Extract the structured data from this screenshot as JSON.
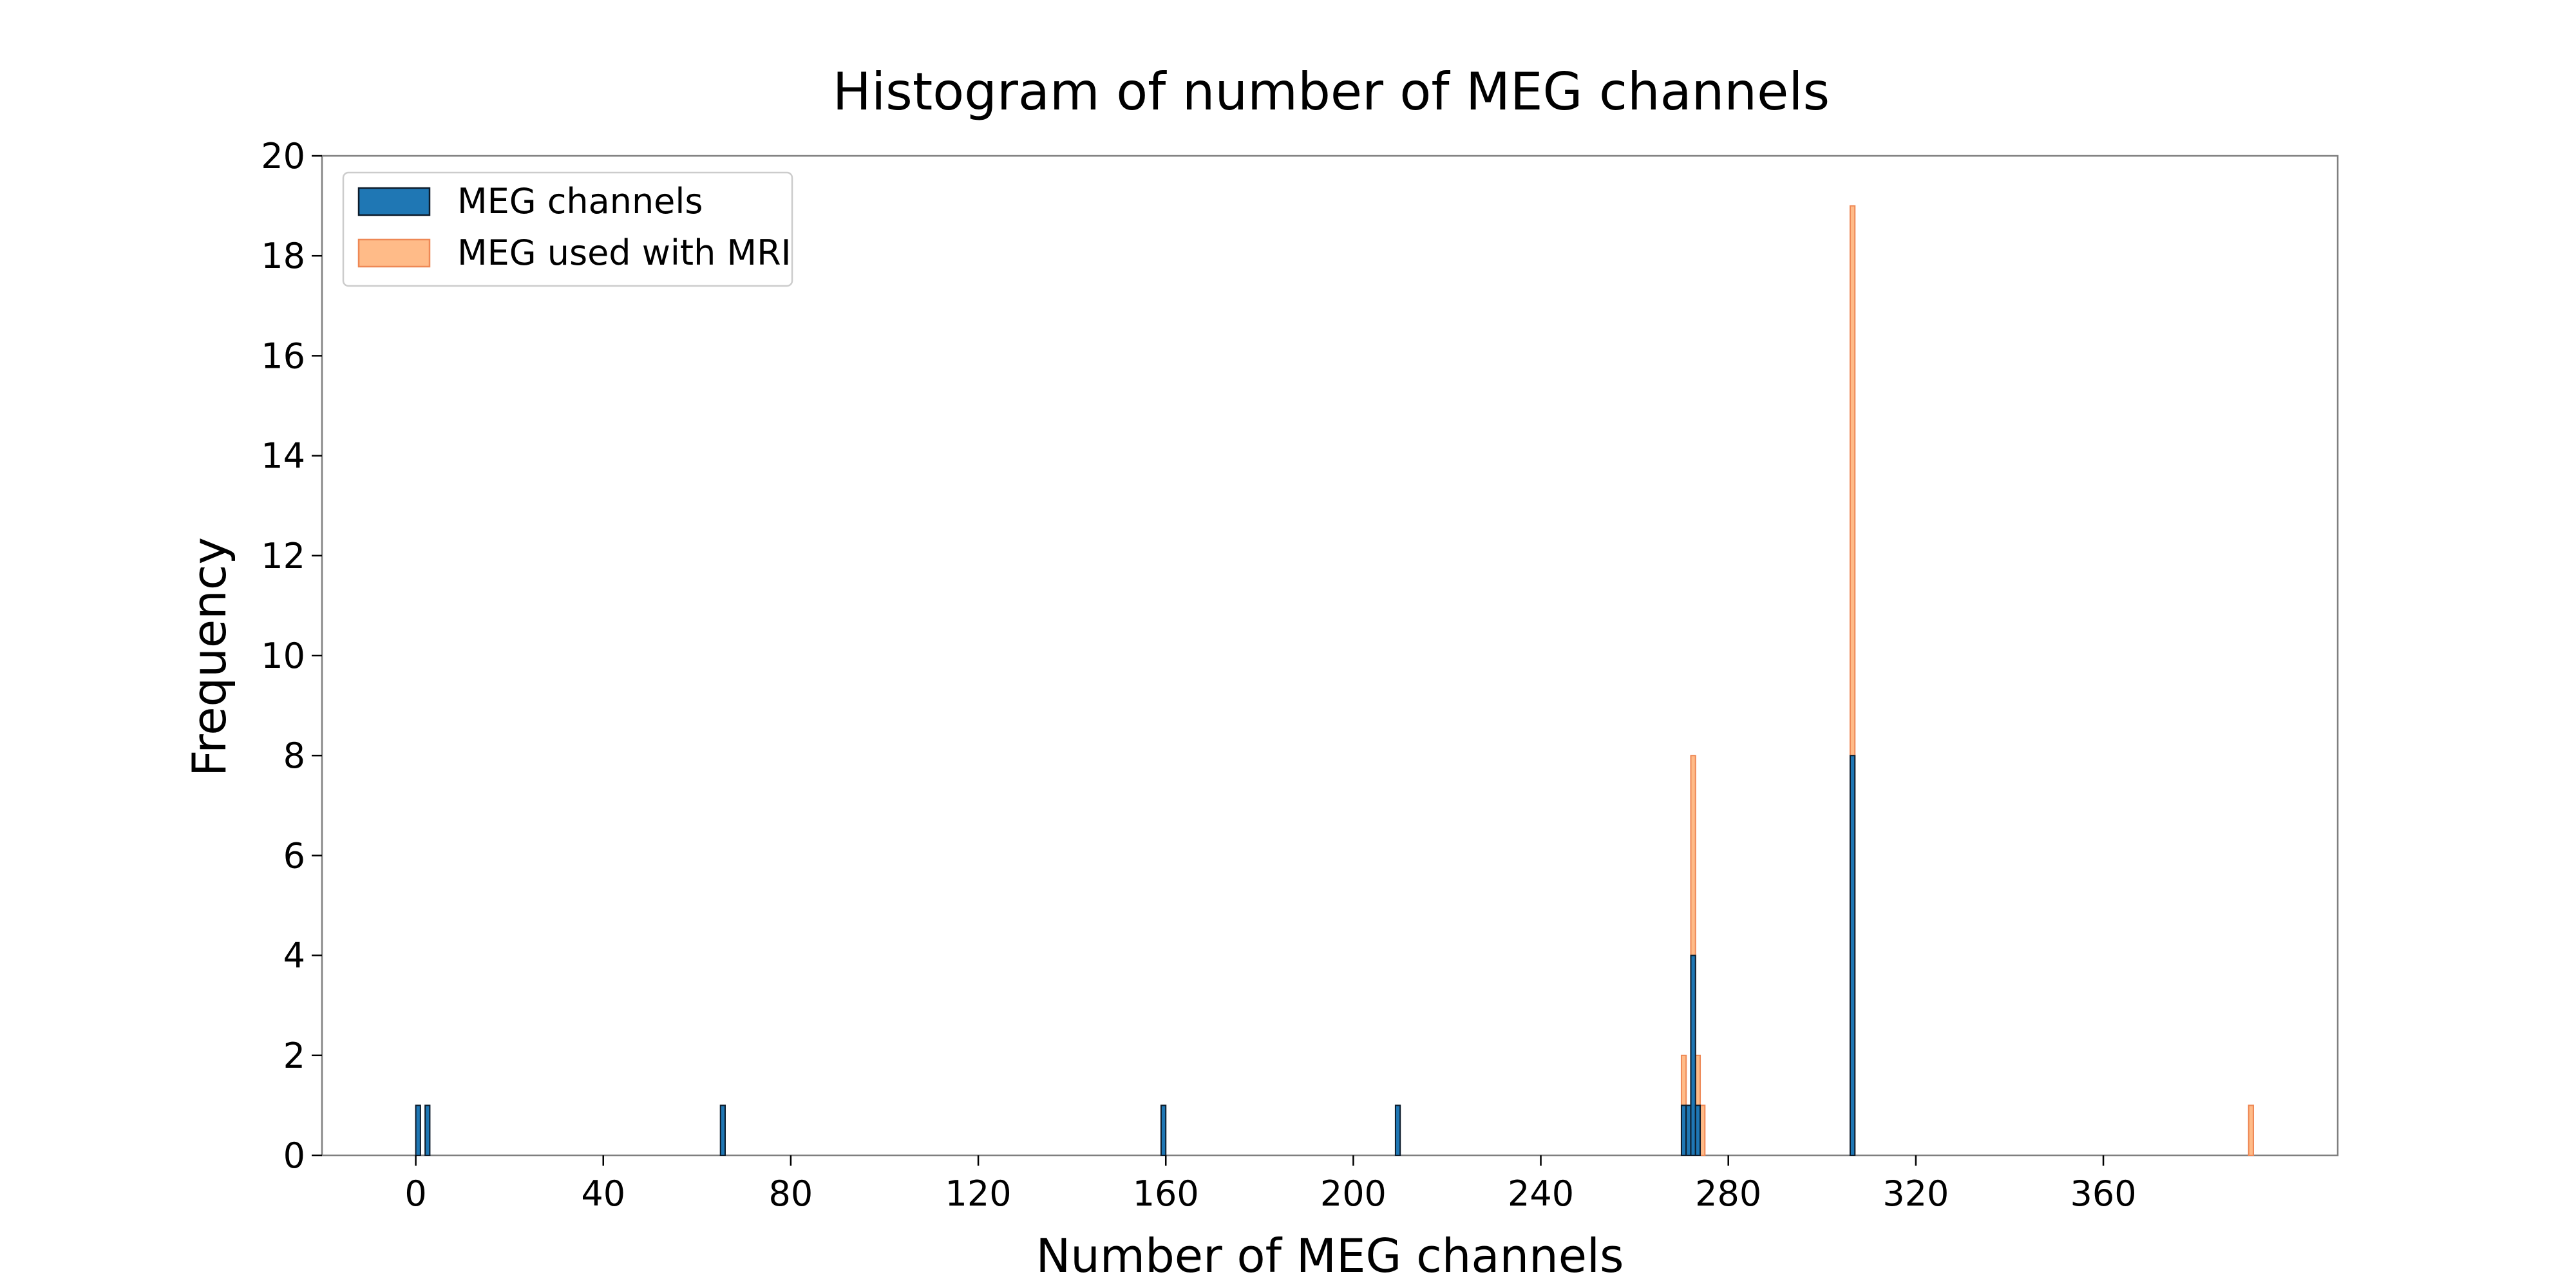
{
  "chart_data": {
    "type": "bar",
    "title": "Histogram of number of MEG channels",
    "xlabel": "Number of MEG channels",
    "ylabel": "Frequency",
    "xlim": [
      -20,
      410
    ],
    "ylim": [
      0,
      20
    ],
    "xticks": [
      0,
      40,
      80,
      120,
      160,
      200,
      240,
      280,
      320,
      360
    ],
    "yticks": [
      0,
      2,
      4,
      6,
      8,
      10,
      12,
      14,
      16,
      18,
      20
    ],
    "bin_width": 1,
    "grid": false,
    "legend_position": "top-left",
    "colors": {
      "meg_channels": "#1f77b4",
      "meg_channels_edge": "#0d1b2a",
      "meg_used_with_mri": "#ffbb88",
      "meg_used_with_mri_edge": "#ee8855"
    },
    "series": [
      {
        "name": "MEG used with MRI",
        "x": [
          270,
          271,
          272,
          273,
          274,
          306,
          391
        ],
        "values": [
          2,
          1,
          8,
          2,
          1,
          19,
          1
        ]
      },
      {
        "name": "MEG channels",
        "x": [
          0,
          2,
          65,
          159,
          209,
          270,
          271,
          272,
          273,
          306
        ],
        "values": [
          1,
          1,
          1,
          1,
          1,
          1,
          1,
          4,
          1,
          8
        ]
      }
    ]
  }
}
